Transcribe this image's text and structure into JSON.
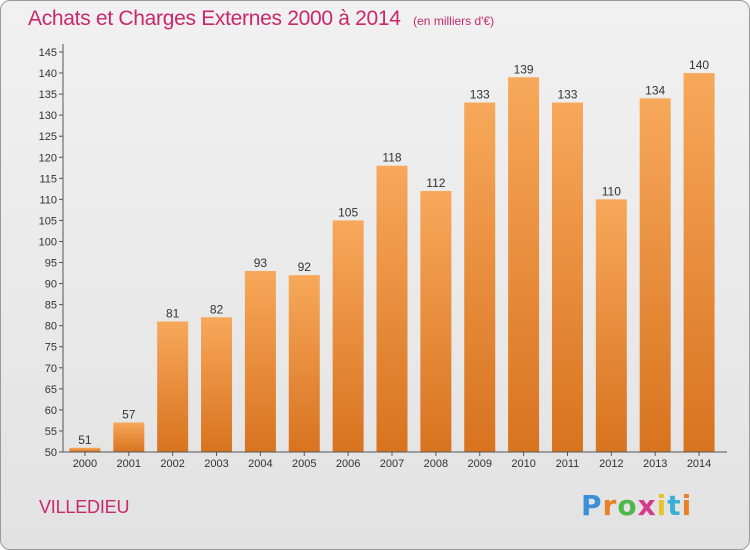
{
  "header": {
    "title": "Achats et Charges Externes 2000 à 2014",
    "subtitle": "(en milliers d'€)"
  },
  "footer": {
    "location": "VILLEDIEU",
    "brand_letters": [
      "P",
      "r",
      "o",
      "x",
      "i",
      "t",
      "i"
    ],
    "brand_colors": [
      "#3a8fd6",
      "#e8822a",
      "#4fb848",
      "#d63a8c",
      "#e8c22a",
      "#3ab0d6",
      "#e8822a"
    ]
  },
  "chart_data": {
    "type": "bar",
    "title": "Achats et Charges Externes 2000 à 2014",
    "subtitle": "(en milliers d'€)",
    "xlabel": "",
    "ylabel": "",
    "categories": [
      "2000",
      "2001",
      "2002",
      "2003",
      "2004",
      "2005",
      "2006",
      "2007",
      "2008",
      "2009",
      "2010",
      "2011",
      "2012",
      "2013",
      "2014"
    ],
    "values": [
      51,
      57,
      81,
      82,
      93,
      92,
      105,
      118,
      112,
      133,
      139,
      133,
      110,
      134,
      140
    ],
    "ylim": [
      50,
      145
    ],
    "yticks": [
      50,
      55,
      60,
      65,
      70,
      75,
      80,
      85,
      90,
      95,
      100,
      105,
      110,
      115,
      120,
      125,
      130,
      135,
      140,
      145
    ],
    "grid": false,
    "bar_color_top": "#f7a85a",
    "bar_color_bottom": "#d8731f"
  }
}
